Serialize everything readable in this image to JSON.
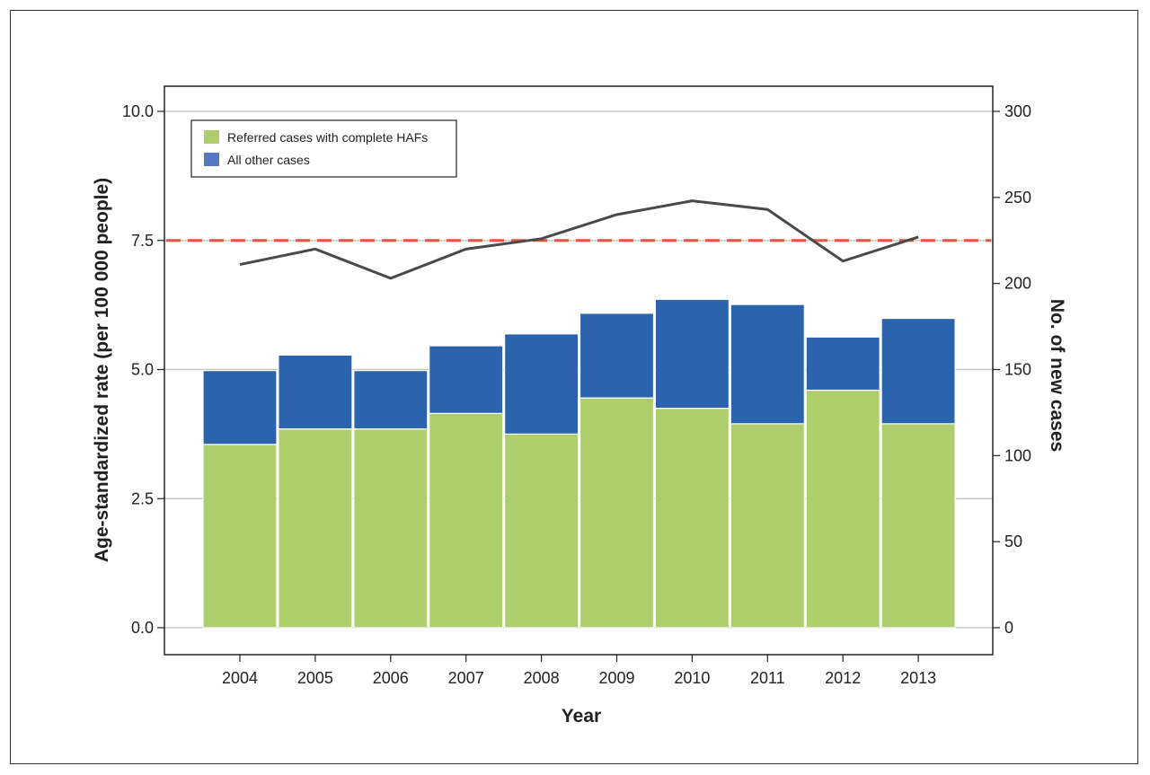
{
  "chart_data": {
    "type": "bar",
    "stacked": true,
    "categories": [
      "2004",
      "2005",
      "2006",
      "2007",
      "2008",
      "2009",
      "2010",
      "2011",
      "2012",
      "2013"
    ],
    "series": [
      {
        "name": "Referred cases with complete HAFs",
        "color": "#aecd6c",
        "values": [
          3.55,
          3.85,
          3.85,
          4.15,
          3.75,
          4.45,
          4.25,
          3.95,
          4.6,
          3.95
        ]
      },
      {
        "name": "All other cases",
        "color": "#2b64ad",
        "values": [
          1.43,
          1.43,
          1.13,
          1.31,
          1.94,
          1.64,
          2.11,
          2.31,
          1.03,
          2.04
        ]
      }
    ],
    "line_series": {
      "axis": "right",
      "color": "#4a4a4a",
      "values": [
        211,
        220,
        203,
        220,
        226,
        240,
        248,
        243,
        213,
        227
      ]
    },
    "reference_line": {
      "value": 7.5,
      "axis": "left",
      "color": "#e8543a",
      "style": "dashed"
    },
    "xlabel": "Year",
    "ylabel": "Age-standardized rate (per 100 000 people)",
    "y2label": "No. of new cases",
    "ylim": [
      0,
      10
    ],
    "y2lim": [
      0,
      300
    ],
    "yticks": [
      "0.0",
      "2.5",
      "5.0",
      "7.5",
      "10.0"
    ],
    "y2ticks": [
      "0",
      "50",
      "100",
      "150",
      "200",
      "250",
      "300"
    ],
    "grid": "horizontal at left-axis ticks",
    "legend_position": "top-left"
  }
}
